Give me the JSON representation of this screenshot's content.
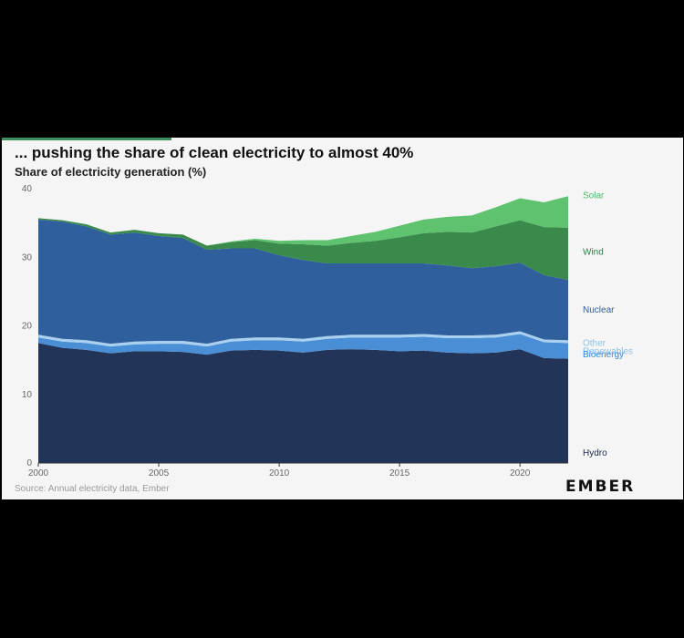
{
  "header": {
    "title": "... pushing the share of clean electricity to almost 40%",
    "subtitle": "Share of electricity generation (%)"
  },
  "footer": {
    "source": "Source: Annual electricity data, Ember",
    "logo": "EMBER"
  },
  "colors": {
    "Hydro": "#223457",
    "Bioenergy": "#4a8fd6",
    "Other Renewables": "#a9d0ee",
    "Nuclear": "#305f9e",
    "Wind": "#3a8a4c",
    "Solar": "#5ec26f"
  },
  "label_colors": {
    "Solar": "#4fb865",
    "Wind": "#2f7d47",
    "Nuclear": "#305f9e",
    "Other Renewables": "#8ec2e8",
    "Bioenergy": "#3d86d0",
    "Hydro": "#1c2b48"
  },
  "chart_data": {
    "type": "area",
    "stacked": true,
    "title": "... pushing the share of clean electricity to almost 40%",
    "subtitle": "Share of electricity generation (%)",
    "xlabel": "",
    "ylabel": "",
    "xlim": [
      2000,
      2022
    ],
    "ylim": [
      0,
      40
    ],
    "x_ticks": [
      2000,
      2005,
      2010,
      2015,
      2020
    ],
    "y_ticks": [
      0,
      10,
      20,
      30,
      40
    ],
    "grid": false,
    "legend": "right",
    "x": [
      2000,
      2001,
      2002,
      2003,
      2004,
      2005,
      2006,
      2007,
      2008,
      2009,
      2010,
      2011,
      2012,
      2013,
      2014,
      2015,
      2016,
      2017,
      2018,
      2019,
      2020,
      2021,
      2022
    ],
    "series": [
      {
        "name": "Hydro",
        "values": [
          17.5,
          16.8,
          16.5,
          16.0,
          16.3,
          16.3,
          16.2,
          15.8,
          16.4,
          16.5,
          16.4,
          16.1,
          16.5,
          16.6,
          16.5,
          16.3,
          16.4,
          16.1,
          16.0,
          16.1,
          16.6,
          15.3,
          15.2
        ]
      },
      {
        "name": "Bioenergy",
        "values": [
          0.8,
          0.9,
          1.0,
          1.0,
          1.0,
          1.1,
          1.2,
          1.2,
          1.3,
          1.4,
          1.5,
          1.6,
          1.6,
          1.7,
          1.8,
          2.0,
          2.0,
          2.1,
          2.2,
          2.2,
          2.2,
          2.3,
          2.3
        ]
      },
      {
        "name": "Other Renewables",
        "values": [
          0.4,
          0.4,
          0.4,
          0.4,
          0.4,
          0.4,
          0.4,
          0.4,
          0.4,
          0.4,
          0.4,
          0.4,
          0.4,
          0.4,
          0.4,
          0.4,
          0.4,
          0.4,
          0.4,
          0.4,
          0.4,
          0.4,
          0.4
        ]
      },
      {
        "name": "Nuclear",
        "values": [
          16.8,
          17.1,
          16.6,
          15.9,
          15.9,
          15.3,
          15.0,
          13.7,
          13.2,
          13.0,
          12.0,
          11.5,
          10.6,
          10.4,
          10.4,
          10.4,
          10.3,
          10.2,
          9.8,
          10.0,
          10.0,
          9.4,
          8.8
        ]
      },
      {
        "name": "Wind",
        "values": [
          0.2,
          0.2,
          0.3,
          0.3,
          0.4,
          0.4,
          0.5,
          0.6,
          0.9,
          1.2,
          1.7,
          2.3,
          2.6,
          3.0,
          3.3,
          3.8,
          4.4,
          4.9,
          5.2,
          5.8,
          6.2,
          7.0,
          7.6
        ]
      },
      {
        "name": "Solar",
        "values": [
          0.0,
          0.0,
          0.0,
          0.0,
          0.0,
          0.0,
          0.0,
          0.0,
          0.1,
          0.2,
          0.4,
          0.6,
          0.8,
          1.0,
          1.3,
          1.7,
          2.0,
          2.2,
          2.5,
          2.8,
          3.2,
          3.6,
          4.6
        ]
      }
    ],
    "series_labels": [
      {
        "name": "Solar",
        "text": "Solar"
      },
      {
        "name": "Wind",
        "text": "Wind"
      },
      {
        "name": "Nuclear",
        "text": "Nuclear"
      },
      {
        "name": "Other Renewables",
        "text": "Other Renewables"
      },
      {
        "name": "Bioenergy",
        "text": "Bioenergy"
      },
      {
        "name": "Hydro",
        "text": "Hydro"
      }
    ]
  }
}
